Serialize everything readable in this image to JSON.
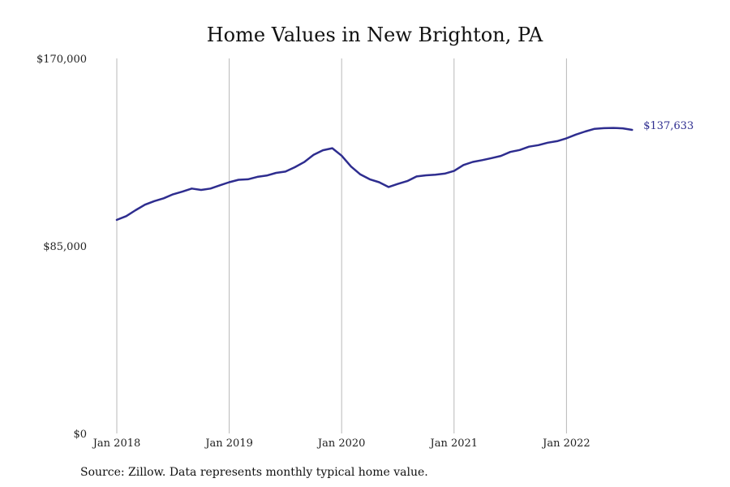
{
  "chart_data": {
    "type": "line",
    "title": "Home Values in New Brighton, PA",
    "xlabel": "",
    "ylabel": "",
    "x_ticks": [
      "Jan 2018",
      "Jan 2019",
      "Jan 2020",
      "Jan 2021",
      "Jan 2022"
    ],
    "y_ticks": [
      "$0",
      "$85,000",
      "$170,000"
    ],
    "y_tick_values": [
      0,
      85000,
      170000
    ],
    "ylim": [
      0,
      170000
    ],
    "xlim": [
      "2018-01",
      "2022-12"
    ],
    "grid": "vertical",
    "series": [
      {
        "color": "#2e2d8f",
        "end_label": "$137,633",
        "x": [
          "2018-01",
          "2018-02",
          "2018-03",
          "2018-04",
          "2018-05",
          "2018-06",
          "2018-07",
          "2018-08",
          "2018-09",
          "2018-10",
          "2018-11",
          "2018-12",
          "2019-01",
          "2019-02",
          "2019-03",
          "2019-04",
          "2019-05",
          "2019-06",
          "2019-07",
          "2019-08",
          "2019-09",
          "2019-10",
          "2019-11",
          "2019-12",
          "2020-01",
          "2020-02",
          "2020-03",
          "2020-04",
          "2020-05",
          "2020-06",
          "2020-07",
          "2020-08",
          "2020-09",
          "2020-10",
          "2020-11",
          "2020-12",
          "2021-01",
          "2021-02",
          "2021-03",
          "2021-04",
          "2021-05",
          "2021-06",
          "2021-07",
          "2021-08",
          "2021-09",
          "2021-10",
          "2021-11",
          "2021-12",
          "2022-01",
          "2022-02",
          "2022-03",
          "2022-04",
          "2022-05",
          "2022-06",
          "2022-07",
          "2022-08"
        ],
        "values": [
          96800,
          98500,
          101200,
          103700,
          105300,
          106600,
          108400,
          109600,
          111000,
          110400,
          111000,
          112500,
          113900,
          115000,
          115200,
          116300,
          116900,
          118100,
          118700,
          120700,
          123000,
          126300,
          128400,
          129300,
          125900,
          121000,
          117400,
          115200,
          113900,
          111700,
          113100,
          114400,
          116500,
          117000,
          117300,
          117800,
          119000,
          121700,
          123100,
          123900,
          124800,
          125800,
          127600,
          128500,
          130000,
          130700,
          131800,
          132500,
          133800,
          135500,
          136900,
          138100,
          138400,
          138500,
          138300,
          137633
        ]
      }
    ]
  },
  "source": "Source: Zillow. Data represents monthly typical home value."
}
